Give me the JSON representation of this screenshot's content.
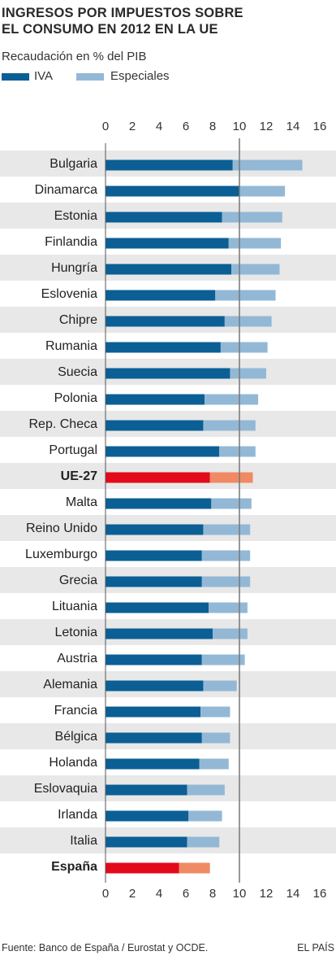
{
  "title_lines": [
    "Ingresos por impuestos sobre",
    "el consumo en 2012 en la UE"
  ],
  "subtitle": "Recaudación en % del PIB",
  "legend": [
    {
      "label": "IVA",
      "color": "#0b5f94"
    },
    {
      "label": "Especiales",
      "color": "#93b8d6"
    }
  ],
  "colors": {
    "iva": "#0b5f94",
    "especiales": "#93b8d6",
    "highlight_iva": "#e30a1a",
    "highlight_especiales": "#ef8a64",
    "stripe": "#e8e8e8",
    "reference_line": "#777777"
  },
  "chart_data": {
    "type": "bar",
    "orientation": "horizontal",
    "stacked": true,
    "xlim": [
      0,
      16
    ],
    "ticks": [
      0,
      2,
      4,
      6,
      8,
      10,
      12,
      14,
      16
    ],
    "tick_labels_top_and_bottom": true,
    "reference_line": 10,
    "categories": [
      "Bulgaria",
      "Dinamarca",
      "Estonia",
      "Finlandia",
      "Hungría",
      "Eslovenia",
      "Chipre",
      "Rumania",
      "Suecia",
      "Polonia",
      "Rep. Checa",
      "Portugal",
      "UE-27",
      "Malta",
      "Reino Unido",
      "Luxemburgo",
      "Grecia",
      "Lituania",
      "Letonia",
      "Austria",
      "Alemania",
      "Francia",
      "Bélgica",
      "Holanda",
      "Eslovaquia",
      "Irlanda",
      "Italia",
      "España"
    ],
    "highlighted": [
      "UE-27",
      "España"
    ],
    "series": [
      {
        "name": "IVA",
        "values": [
          9.5,
          10.0,
          8.7,
          9.2,
          9.4,
          8.2,
          8.9,
          8.6,
          9.3,
          7.4,
          7.3,
          8.5,
          7.8,
          7.9,
          7.3,
          7.2,
          7.2,
          7.7,
          8.0,
          7.2,
          7.3,
          7.1,
          7.2,
          7.0,
          6.1,
          6.2,
          6.1,
          5.5
        ]
      },
      {
        "name": "Especiales",
        "values": [
          5.2,
          3.4,
          4.5,
          3.9,
          3.6,
          4.5,
          3.5,
          3.5,
          2.7,
          4.0,
          3.9,
          2.7,
          3.2,
          3.0,
          3.5,
          3.6,
          3.6,
          2.9,
          2.6,
          3.2,
          2.5,
          2.2,
          2.1,
          2.2,
          2.8,
          2.5,
          2.4,
          2.3
        ]
      }
    ]
  },
  "footer": {
    "source": "Fuente: Banco de España / Eurostat  y OCDE.",
    "brand": "EL PAÍS"
  }
}
